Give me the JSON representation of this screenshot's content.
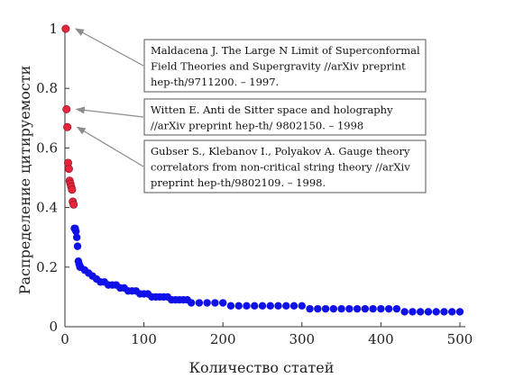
{
  "chart_data": {
    "type": "scatter",
    "xlabel": "Количество статей",
    "ylabel": "Распределение цитируемости",
    "xlim": [
      0,
      500
    ],
    "ylim": [
      0,
      1.0
    ],
    "xticks": [
      0,
      100,
      200,
      300,
      400,
      500
    ],
    "yticks": [
      0,
      0.2,
      0.4,
      0.6,
      0.8,
      1
    ],
    "grid": false,
    "colors": {
      "highlight": "#e8243c",
      "main": "#1010e8",
      "axis": "#333333",
      "arrow": "#8c8c8c"
    },
    "series": [
      {
        "values_highlight": [
          [
            1,
            1.0
          ],
          [
            2,
            0.73
          ],
          [
            3,
            0.67
          ],
          [
            4,
            0.55
          ],
          [
            5,
            0.53
          ],
          [
            6,
            0.49
          ],
          [
            7,
            0.48
          ],
          [
            8,
            0.47
          ],
          [
            9,
            0.46
          ],
          [
            10,
            0.42
          ],
          [
            11,
            0.41
          ]
        ],
        "values_main": [
          [
            12,
            0.33
          ],
          [
            13,
            0.33
          ],
          [
            14,
            0.32
          ],
          [
            15,
            0.3
          ],
          [
            16,
            0.27
          ],
          [
            17,
            0.22
          ],
          [
            18,
            0.21
          ],
          [
            19,
            0.2
          ],
          [
            20,
            0.2
          ],
          [
            25,
            0.19
          ],
          [
            30,
            0.18
          ],
          [
            35,
            0.17
          ],
          [
            40,
            0.16
          ],
          [
            45,
            0.15
          ],
          [
            50,
            0.15
          ],
          [
            55,
            0.14
          ],
          [
            60,
            0.14
          ],
          [
            65,
            0.14
          ],
          [
            70,
            0.13
          ],
          [
            75,
            0.13
          ],
          [
            80,
            0.12
          ],
          [
            85,
            0.12
          ],
          [
            90,
            0.12
          ],
          [
            95,
            0.11
          ],
          [
            100,
            0.11
          ],
          [
            105,
            0.11
          ],
          [
            110,
            0.1
          ],
          [
            115,
            0.1
          ],
          [
            120,
            0.1
          ],
          [
            125,
            0.1
          ],
          [
            130,
            0.1
          ],
          [
            135,
            0.09
          ],
          [
            140,
            0.09
          ],
          [
            145,
            0.09
          ],
          [
            150,
            0.09
          ],
          [
            155,
            0.09
          ],
          [
            160,
            0.08
          ],
          [
            170,
            0.08
          ],
          [
            180,
            0.08
          ],
          [
            190,
            0.08
          ],
          [
            200,
            0.08
          ],
          [
            210,
            0.07
          ],
          [
            220,
            0.07
          ],
          [
            230,
            0.07
          ],
          [
            240,
            0.07
          ],
          [
            250,
            0.07
          ],
          [
            260,
            0.07
          ],
          [
            270,
            0.07
          ],
          [
            280,
            0.07
          ],
          [
            290,
            0.07
          ],
          [
            300,
            0.07
          ],
          [
            310,
            0.06
          ],
          [
            320,
            0.06
          ],
          [
            330,
            0.06
          ],
          [
            340,
            0.06
          ],
          [
            350,
            0.06
          ],
          [
            360,
            0.06
          ],
          [
            370,
            0.06
          ],
          [
            380,
            0.06
          ],
          [
            390,
            0.06
          ],
          [
            400,
            0.06
          ],
          [
            410,
            0.06
          ],
          [
            420,
            0.06
          ],
          [
            430,
            0.05
          ],
          [
            440,
            0.05
          ],
          [
            450,
            0.05
          ],
          [
            460,
            0.05
          ],
          [
            470,
            0.05
          ],
          [
            480,
            0.05
          ],
          [
            490,
            0.05
          ],
          [
            500,
            0.05
          ]
        ]
      }
    ],
    "annotations": [
      {
        "lines": [
          "Maldacena J. The Large N Limit of Superconformal",
          "Field Theories and Supergravity //arXiv preprint",
          "hep-th/9711200. – 1997."
        ],
        "target": [
          1,
          1.0
        ]
      },
      {
        "lines": [
          "Witten E. Anti de Sitter space and holography",
          "//arXiv preprint hep-th/ 9802150. – 1998"
        ],
        "target": [
          2,
          0.73
        ]
      },
      {
        "lines": [
          "Gubser S., Klebanov I., Polyakov A. Gauge theory",
          "correlators from non-critical string theory //arXiv",
          "preprint hep-th/9802109. – 1998."
        ],
        "target": [
          3,
          0.67
        ]
      }
    ]
  }
}
